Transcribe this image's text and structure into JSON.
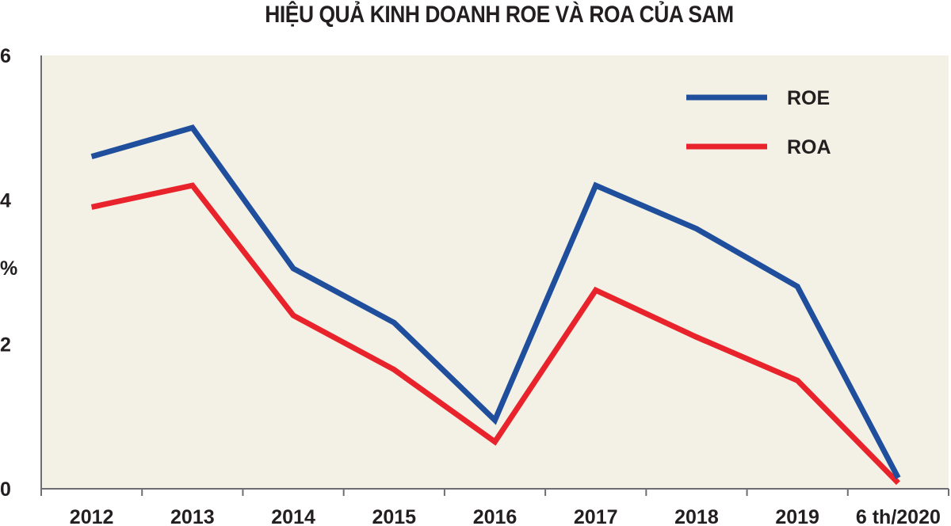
{
  "chart_data": {
    "type": "line",
    "title": "HIỆU QUẢ KINH DOANH ROE VÀ ROA CỦA SAM",
    "ylabel": "%",
    "ylim": [
      0,
      6
    ],
    "yticks": [
      "0",
      "2",
      "4",
      "6"
    ],
    "categories": [
      "2012",
      "2013",
      "2014",
      "2015",
      "2016",
      "2017",
      "2018",
      "2019",
      "6 th/2020"
    ],
    "series": [
      {
        "name": "ROE",
        "color": "#1f4e9c",
        "values": [
          4.6,
          5.0,
          3.05,
          2.3,
          0.95,
          4.2,
          3.6,
          2.8,
          0.15
        ]
      },
      {
        "name": "ROA",
        "color": "#e8232b",
        "values": [
          3.9,
          4.2,
          2.4,
          1.65,
          0.65,
          2.75,
          2.1,
          1.5,
          0.08
        ]
      }
    ],
    "legend_position": "top-right",
    "grid": false,
    "background": "#f3f0e5"
  }
}
